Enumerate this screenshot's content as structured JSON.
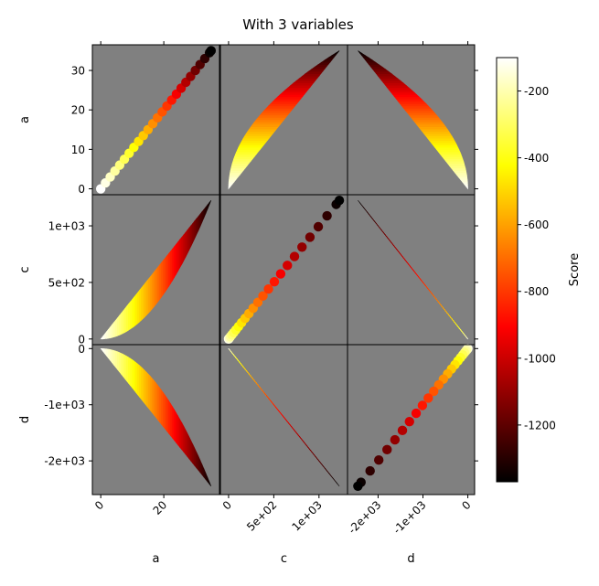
{
  "title": "With 3 variables",
  "colorbar": {
    "label": "Score",
    "min": -1370,
    "max": -100,
    "ticks": [
      -200,
      -400,
      -600,
      -800,
      -1000,
      -1200
    ],
    "colormap": "hot"
  },
  "chart_data": {
    "type": "pairplot-heatmap",
    "title": "With 3 variables",
    "variables": [
      "a",
      "c",
      "d"
    ],
    "axis_labels": {
      "a": "a",
      "c": "c",
      "d": "d"
    },
    "ranges": {
      "a": [
        -1.5,
        36.5
      ],
      "c": [
        -50,
        1275
      ],
      "d": [
        -2600,
        70
      ]
    },
    "ticks": {
      "a": {
        "values": [
          0,
          10,
          20,
          30
        ],
        "labels": [
          "0",
          "10",
          "20",
          "30"
        ]
      },
      "c": {
        "values": [
          0,
          500,
          1000
        ],
        "labels": [
          "0",
          "5e+02",
          "1e+03"
        ]
      },
      "d": {
        "values": [
          -2000,
          -1000,
          0
        ],
        "labels": [
          "-2e+03",
          "-1e+03",
          "0"
        ]
      }
    },
    "x_ticks": {
      "a": {
        "values": [
          0,
          20
        ],
        "labels": [
          "0",
          "20"
        ]
      }
    },
    "samples_a": [
      0,
      1.5,
      3,
      4.5,
      6,
      7.5,
      9,
      10.5,
      12,
      13.5,
      15,
      16.5,
      18,
      19.5,
      21,
      22.5,
      24,
      25.5,
      27,
      28.5,
      30,
      31.5,
      33,
      34.5,
      35
    ],
    "relations": {
      "c": "a^2",
      "d": "-2*a^2"
    },
    "score": {
      "formula": "-(a + c - d/2 ... ) mapped",
      "min": -1370,
      "max": -100
    },
    "panel_background": "#808080",
    "diagonal": "scatter",
    "off_diagonal": "filled-region"
  }
}
